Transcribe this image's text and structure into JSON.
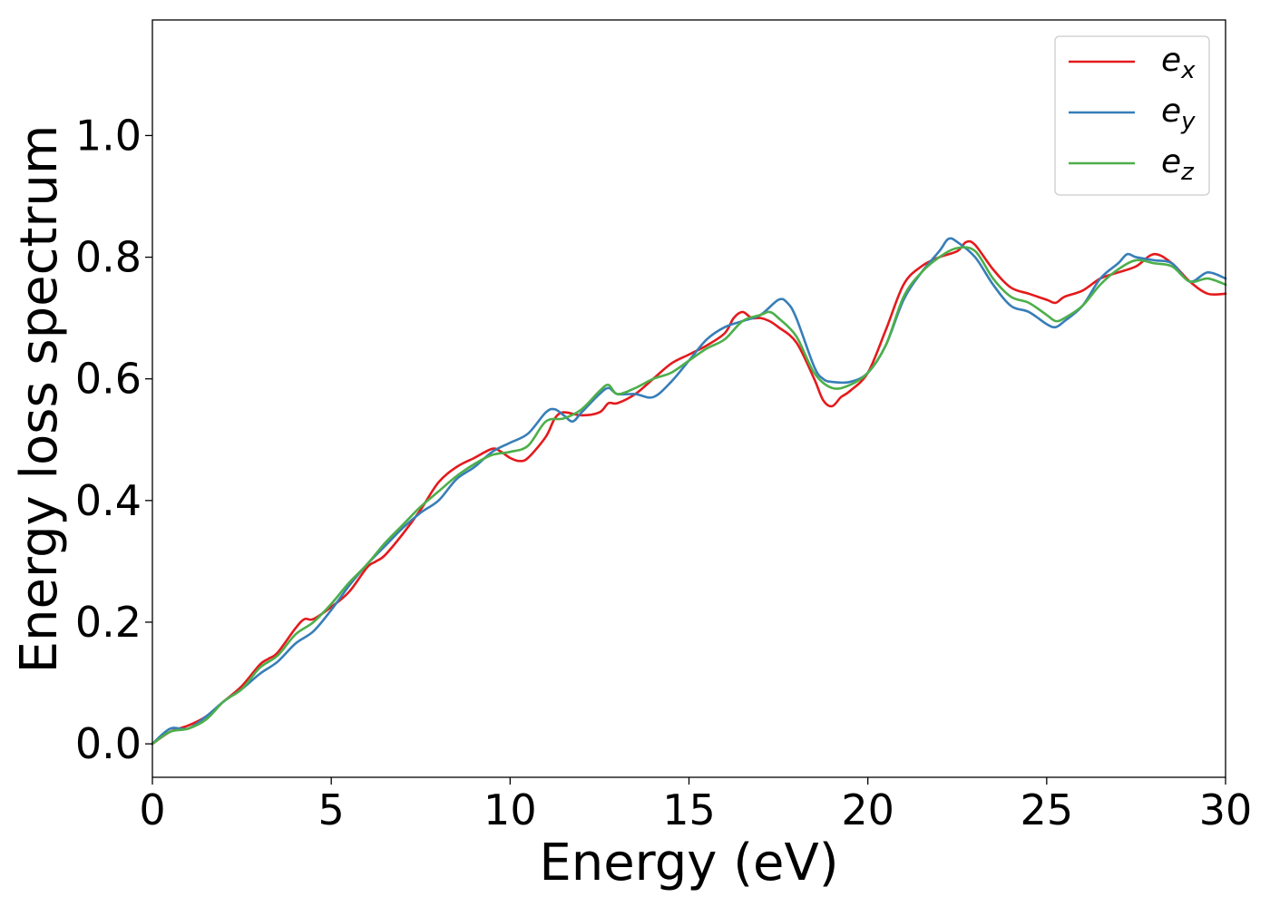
{
  "chart_data": {
    "type": "line",
    "xlabel": "Energy (eV)",
    "ylabel": "Energy loss spectrum",
    "xlim": [
      0,
      30
    ],
    "ylim": [
      -0.055,
      1.19
    ],
    "xticks": [
      0,
      5,
      10,
      15,
      20,
      25,
      30
    ],
    "yticks": [
      0.0,
      0.2,
      0.4,
      0.6,
      0.8,
      1.0
    ],
    "xtick_labels": [
      "0",
      "5",
      "10",
      "15",
      "20",
      "25",
      "30"
    ],
    "ytick_labels": [
      "0.0",
      "0.2",
      "0.4",
      "0.6",
      "0.8",
      "1.0"
    ],
    "grid": false,
    "legend_position": "top-right",
    "series": [
      {
        "name": "e",
        "subscript": "x",
        "color": "#e41a1c",
        "x": [
          0,
          0.5,
          1.0,
          1.5,
          2.0,
          2.5,
          3.0,
          3.25,
          3.5,
          4.0,
          4.25,
          4.5,
          5.0,
          5.5,
          6.0,
          6.25,
          6.5,
          7.0,
          7.5,
          8.0,
          8.5,
          9.0,
          9.5,
          9.75,
          10.0,
          10.25,
          10.5,
          11.0,
          11.25,
          11.5,
          12.0,
          12.5,
          12.75,
          13.0,
          13.5,
          14.0,
          14.5,
          15.0,
          15.5,
          16.0,
          16.25,
          16.5,
          16.75,
          17.0,
          17.25,
          17.5,
          18.0,
          18.5,
          18.75,
          19.0,
          19.25,
          19.5,
          20.0,
          20.5,
          21.0,
          21.5,
          22.0,
          22.5,
          22.75,
          23.0,
          23.5,
          24.0,
          24.5,
          25.0,
          25.25,
          25.5,
          26.0,
          26.5,
          27.0,
          27.5,
          28.0,
          28.5,
          29.0,
          29.5,
          30.0
        ],
        "y": [
          0.0,
          0.02,
          0.03,
          0.045,
          0.07,
          0.095,
          0.13,
          0.14,
          0.15,
          0.19,
          0.205,
          0.205,
          0.225,
          0.25,
          0.29,
          0.3,
          0.31,
          0.345,
          0.385,
          0.43,
          0.455,
          0.47,
          0.485,
          0.48,
          0.47,
          0.465,
          0.47,
          0.505,
          0.535,
          0.545,
          0.54,
          0.545,
          0.56,
          0.56,
          0.575,
          0.6,
          0.625,
          0.64,
          0.655,
          0.675,
          0.7,
          0.71,
          0.7,
          0.7,
          0.695,
          0.685,
          0.66,
          0.6,
          0.565,
          0.555,
          0.57,
          0.58,
          0.61,
          0.68,
          0.755,
          0.785,
          0.8,
          0.81,
          0.825,
          0.82,
          0.78,
          0.75,
          0.74,
          0.73,
          0.725,
          0.735,
          0.745,
          0.765,
          0.775,
          0.785,
          0.805,
          0.79,
          0.76,
          0.74,
          0.74
        ]
      },
      {
        "name": "e",
        "subscript": "y",
        "color": "#377eb8",
        "x": [
          0,
          0.5,
          1.0,
          1.5,
          2.0,
          2.5,
          3.0,
          3.5,
          4.0,
          4.5,
          5.0,
          5.5,
          6.0,
          6.5,
          7.0,
          7.5,
          8.0,
          8.5,
          9.0,
          9.5,
          10.0,
          10.5,
          11.0,
          11.25,
          11.5,
          11.75,
          12.0,
          12.5,
          12.75,
          13.0,
          13.5,
          14.0,
          14.5,
          15.0,
          15.5,
          16.0,
          16.5,
          17.0,
          17.5,
          17.75,
          18.0,
          18.5,
          18.75,
          19.0,
          19.5,
          20.0,
          20.5,
          21.0,
          21.5,
          22.0,
          22.25,
          22.5,
          23.0,
          23.5,
          24.0,
          24.5,
          25.0,
          25.25,
          25.5,
          26.0,
          26.5,
          27.0,
          27.25,
          27.5,
          28.0,
          28.5,
          29.0,
          29.5,
          30.0
        ],
        "y": [
          0.0,
          0.025,
          0.025,
          0.045,
          0.07,
          0.09,
          0.115,
          0.135,
          0.165,
          0.185,
          0.22,
          0.26,
          0.295,
          0.325,
          0.355,
          0.38,
          0.4,
          0.435,
          0.455,
          0.48,
          0.495,
          0.51,
          0.545,
          0.55,
          0.54,
          0.53,
          0.545,
          0.575,
          0.585,
          0.575,
          0.575,
          0.57,
          0.595,
          0.63,
          0.665,
          0.685,
          0.695,
          0.705,
          0.73,
          0.725,
          0.7,
          0.62,
          0.6,
          0.595,
          0.595,
          0.61,
          0.655,
          0.73,
          0.775,
          0.81,
          0.83,
          0.825,
          0.8,
          0.755,
          0.72,
          0.71,
          0.69,
          0.685,
          0.695,
          0.72,
          0.765,
          0.79,
          0.805,
          0.8,
          0.795,
          0.79,
          0.76,
          0.775,
          0.765
        ]
      },
      {
        "name": "e",
        "subscript": "z",
        "color": "#4daf4a",
        "x": [
          0,
          0.5,
          1.0,
          1.5,
          2.0,
          2.5,
          3.0,
          3.5,
          4.0,
          4.5,
          5.0,
          5.5,
          6.0,
          6.5,
          7.0,
          7.5,
          8.0,
          8.5,
          9.0,
          9.5,
          10.0,
          10.5,
          11.0,
          11.5,
          12.0,
          12.5,
          12.75,
          13.0,
          13.5,
          14.0,
          14.5,
          15.0,
          15.5,
          16.0,
          16.5,
          17.0,
          17.25,
          17.5,
          18.0,
          18.5,
          19.0,
          19.5,
          20.0,
          20.5,
          21.0,
          21.5,
          22.0,
          22.5,
          23.0,
          23.5,
          24.0,
          24.5,
          25.0,
          25.25,
          25.5,
          26.0,
          26.5,
          27.0,
          27.5,
          28.0,
          28.5,
          29.0,
          29.5,
          30.0
        ],
        "y": [
          0.0,
          0.02,
          0.025,
          0.04,
          0.07,
          0.09,
          0.125,
          0.145,
          0.18,
          0.2,
          0.23,
          0.265,
          0.295,
          0.33,
          0.36,
          0.39,
          0.415,
          0.44,
          0.46,
          0.475,
          0.48,
          0.49,
          0.53,
          0.535,
          0.55,
          0.58,
          0.59,
          0.575,
          0.585,
          0.6,
          0.61,
          0.63,
          0.65,
          0.665,
          0.695,
          0.705,
          0.71,
          0.7,
          0.67,
          0.61,
          0.585,
          0.59,
          0.61,
          0.655,
          0.735,
          0.775,
          0.8,
          0.815,
          0.81,
          0.765,
          0.735,
          0.725,
          0.705,
          0.695,
          0.7,
          0.72,
          0.755,
          0.78,
          0.795,
          0.79,
          0.785,
          0.76,
          0.765,
          0.755
        ]
      }
    ]
  }
}
